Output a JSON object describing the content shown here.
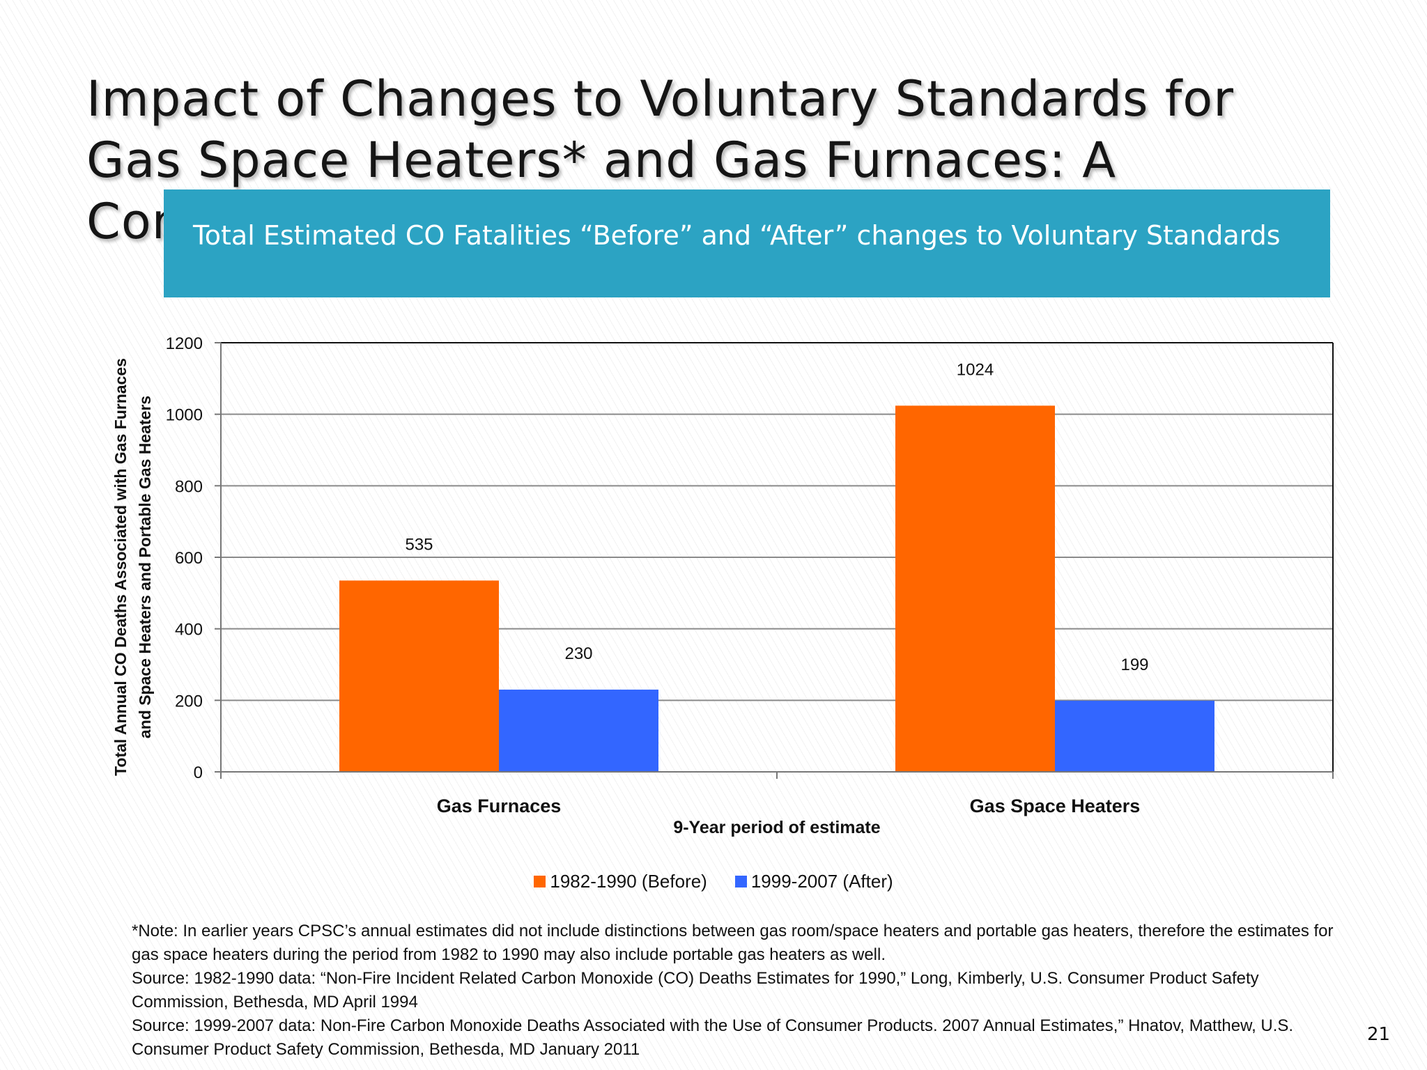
{
  "slide": {
    "title": "Impact of Changes to Voluntary Standards for Gas Space Heaters* and Gas Furnaces: A Comparison",
    "banner": "Total Estimated CO Fatalities “Before” and “After” changes to Voluntary Standards",
    "page_number": "21"
  },
  "notes": [
    "*Note: In earlier years CPSC’s annual estimates did not include distinctions between gas room/space heaters and portable gas heaters, therefore the estimates  for gas space heaters during the period from 1982 to 1990 may also include portable gas heaters as well.",
    "Source: 1982-1990 data: “Non-Fire Incident Related Carbon Monoxide (CO) Deaths  Estimates for 1990,” Long, Kimberly, U.S. Consumer Product Safety Commission, Bethesda, MD April 1994",
    "Source: 1999-2007 data:  Non-Fire Carbon Monoxide Deaths Associated with the Use of Consumer Products.  2007 Annual Estimates,” Hnatov, Matthew, U.S. Consumer Product Safety Commission, Bethesda, MD January 2011"
  ],
  "chart_data": {
    "type": "bar",
    "title": "",
    "categories": [
      "Gas Furnaces",
      "Gas Space Heaters"
    ],
    "series": [
      {
        "name": "1982-1990 (Before)",
        "values": [
          535,
          1024
        ],
        "color": "#ff6600"
      },
      {
        "name": "1999-2007 (After)",
        "values": [
          230,
          199
        ],
        "color": "#3366ff"
      }
    ],
    "xlabel": "9-Year period of estimate",
    "ylabel_lines": [
      "Total Annual CO  Deaths  Associated with Gas Furnaces",
      "and Space Heaters and Portable Gas Heaters"
    ],
    "ylim": [
      0,
      1200
    ],
    "yticks": [
      0,
      200,
      400,
      600,
      800,
      1000,
      1200
    ],
    "grid": true,
    "legend_position": "bottom"
  }
}
